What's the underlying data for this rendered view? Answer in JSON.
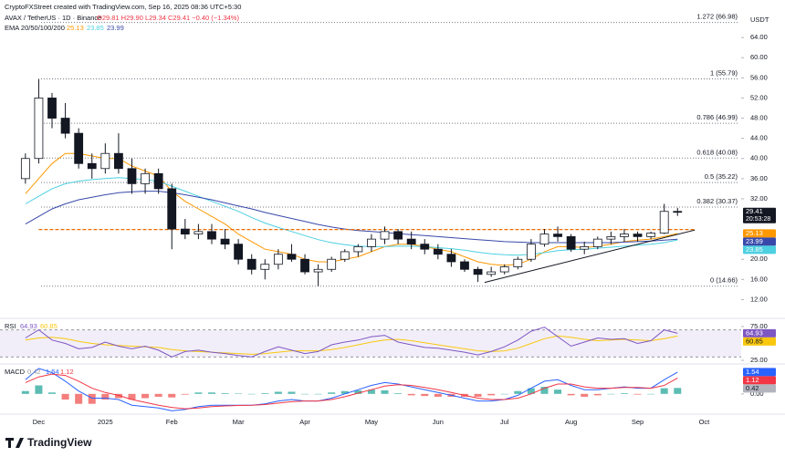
{
  "header": {
    "credit": "CryptoFXStreet created with TradingView.com, Sep 16, 2025 08:36 UTC+5:30",
    "symbol": "AVAX / TetherUS · 1D · Binance",
    "ohlc": "O29.81 H29.90 L29.34 C29.41 −0.40 (−1.34%)",
    "ema_label": "EMA 20/50/100/200",
    "currency": "USDT",
    "countdown": "20:53:28"
  },
  "footer": {
    "logo": "TradingView"
  },
  "chart_data": [
    {
      "type": "candlestick",
      "categories": [
        null,
        "Dec",
        null,
        null,
        null,
        null,
        "2025",
        null,
        null,
        null,
        null,
        "Feb",
        null,
        null,
        null,
        null,
        "Mar",
        null,
        null,
        null,
        null,
        "Apr",
        null,
        null,
        null,
        null,
        "May",
        null,
        null,
        null,
        null,
        "Jun",
        null,
        null,
        null,
        null,
        "Jul",
        null,
        null,
        null,
        null,
        "Aug",
        null,
        null,
        null,
        null,
        "Sep",
        null,
        null,
        null,
        null,
        "Oct"
      ],
      "open": [
        36,
        40,
        52,
        48,
        45,
        39,
        38,
        41,
        38,
        35,
        37,
        34,
        26,
        25,
        25.5,
        24,
        23,
        20,
        18,
        19,
        21,
        20,
        17.5,
        18,
        20,
        21.5,
        22.5,
        24,
        25.5,
        24,
        23,
        22,
        21,
        19.5,
        18,
        17,
        17.5,
        18.5,
        20,
        23,
        25,
        24.5,
        22,
        22.5,
        24,
        24.5,
        25,
        24.5,
        25.2,
        29.5,
        null,
        null
      ],
      "high": [
        41,
        55.79,
        53,
        51,
        46,
        41,
        43,
        45,
        40,
        38,
        38,
        35,
        28,
        27,
        27,
        26,
        24,
        21,
        20,
        22,
        23,
        21,
        19,
        20.5,
        22,
        23,
        25,
        26.5,
        26,
        25.5,
        24,
        23,
        22,
        20,
        18.5,
        18.5,
        19,
        20.5,
        24,
        26,
        26.5,
        25,
        23.5,
        24.5,
        25.5,
        26,
        25.5,
        25.5,
        31,
        30.2,
        null,
        null
      ],
      "low": [
        35,
        39,
        46,
        44,
        38,
        36,
        37,
        37,
        33,
        33,
        33,
        22,
        24,
        24,
        23,
        22,
        19,
        17,
        16,
        18,
        19.5,
        17,
        14.66,
        17.5,
        19.5,
        20.5,
        21.5,
        23,
        23,
        22,
        21,
        20,
        18.5,
        17.5,
        15.5,
        16.5,
        17,
        18,
        19.5,
        22.5,
        23.5,
        21.5,
        21,
        22,
        23,
        23.5,
        23.5,
        24,
        25,
        28.6,
        null,
        null
      ],
      "close": [
        40,
        52,
        48,
        45,
        39,
        38,
        41,
        38,
        35,
        37,
        34,
        26,
        25,
        25.5,
        24,
        23,
        20,
        18,
        19,
        21,
        20,
        17.5,
        18,
        20,
        21.5,
        22.5,
        24,
        25.5,
        24,
        23,
        22,
        21,
        19.5,
        18,
        17,
        17.5,
        18.5,
        20,
        23,
        25,
        24.5,
        22,
        22.5,
        24,
        24.5,
        25,
        24.5,
        25.2,
        29.5,
        29.41,
        null,
        null
      ],
      "up_color": "#ffffff",
      "down_color": "#131722",
      "series": [
        {
          "color": "#ff9800",
          "values": [
            33,
            36,
            39,
            41,
            41,
            40.5,
            40,
            40,
            38.5,
            37.5,
            36.5,
            33.5,
            31.5,
            30,
            28.5,
            27,
            25,
            23.5,
            22,
            21.5,
            21,
            20,
            19.5,
            19.5,
            20,
            20.5,
            21.5,
            22.5,
            23,
            23,
            22.5,
            22,
            21.5,
            20.5,
            19.5,
            19,
            18.8,
            19,
            20,
            21.5,
            22.5,
            22.5,
            22.3,
            22.6,
            23,
            23.5,
            23.8,
            24,
            24.5,
            25.13,
            null,
            null
          ]
        },
        {
          "color": "#4dd0e1",
          "values": [
            31,
            32.5,
            34,
            35,
            35.5,
            35.8,
            36,
            36.2,
            36,
            35.8,
            35.5,
            34.5,
            33.5,
            32.5,
            31.5,
            30.5,
            29.5,
            28.3,
            27.2,
            26.3,
            25.5,
            24.7,
            23.9,
            23.3,
            22.9,
            22.6,
            22.5,
            22.5,
            22.6,
            22.6,
            22.5,
            22.3,
            22.1,
            21.8,
            21.4,
            21.1,
            20.9,
            20.8,
            21,
            21.3,
            21.7,
            21.9,
            22,
            22.2,
            22.4,
            22.6,
            22.8,
            23,
            23.3,
            23.85,
            null,
            null
          ]
        },
        {
          "color": "#3949ab",
          "values": [
            27,
            28.5,
            30,
            31,
            31.8,
            32.3,
            32.8,
            33.2,
            33.4,
            33.5,
            33.5,
            33.2,
            32.8,
            32.3,
            31.8,
            31.2,
            30.6,
            30,
            29.3,
            28.7,
            28.1,
            27.5,
            26.9,
            26.4,
            26,
            25.7,
            25.5,
            25.3,
            25.1,
            24.9,
            24.7,
            24.5,
            24.3,
            24.1,
            23.9,
            23.7,
            23.5,
            23.4,
            23.3,
            23.3,
            23.3,
            23.3,
            23.3,
            23.3,
            23.3,
            23.4,
            23.5,
            23.6,
            23.8,
            23.99,
            null,
            null
          ]
        }
      ],
      "ylim": [
        9,
        70
      ],
      "yticks": [
        {
          "value": 64,
          "label": "64.00"
        },
        {
          "value": 60,
          "label": "60.00"
        },
        {
          "value": 56,
          "label": "56.00"
        },
        {
          "value": 52,
          "label": "52.00"
        },
        {
          "value": 48,
          "label": "48.00"
        },
        {
          "value": 44,
          "label": "44.00"
        },
        {
          "value": 40,
          "label": "40.00"
        },
        {
          "value": 36,
          "label": "36.00"
        },
        {
          "value": 32,
          "label": "32.00"
        },
        {
          "value": 20,
          "label": "20.00"
        },
        {
          "value": 16,
          "label": "16.00"
        },
        {
          "value": 12,
          "label": "12.00"
        }
      ],
      "fib_levels": [
        {
          "value": 66.98,
          "label": "1.272 (66.98)"
        },
        {
          "value": 55.79,
          "label": "1 (55.79)"
        },
        {
          "value": 46.99,
          "label": "0.786 (46.99)"
        },
        {
          "value": 40.08,
          "label": "0.618 (40.08)"
        },
        {
          "value": 35.22,
          "label": "0.5 (35.22)"
        },
        {
          "value": 30.37,
          "label": "0.382 (30.37)"
        },
        {
          "value": 14.66,
          "label": "0 (14.66)"
        }
      ],
      "resistance": {
        "value": 25.9,
        "color": "#ef6c00"
      },
      "trendline": {
        "values": [
          15.4,
          25.8
        ],
        "color": "#131722"
      }
    },
    {
      "type": "line",
      "title": "RSI",
      "series": [
        {
          "color": "#7e57c2",
          "values": [
            58,
            70,
            55,
            50,
            42,
            44,
            52,
            46,
            42,
            46,
            40,
            30,
            38,
            40,
            37,
            35,
            32,
            30,
            38,
            45,
            40,
            35,
            38,
            48,
            52,
            55,
            60,
            62,
            52,
            48,
            44,
            43,
            40,
            37,
            33,
            38,
            45,
            55,
            68,
            74,
            60,
            46,
            52,
            58,
            56,
            57,
            50,
            54,
            70,
            64.93,
            null,
            null
          ]
        },
        {
          "color": "#f9c80e",
          "values": [
            55,
            58,
            59,
            57,
            53,
            50,
            48,
            47,
            46,
            45,
            44,
            41,
            39,
            38,
            37,
            36,
            35,
            34,
            35,
            37,
            39,
            39,
            39,
            41,
            44,
            48,
            52,
            55,
            56,
            54,
            51,
            48,
            45,
            42,
            39,
            38,
            39,
            43,
            50,
            57,
            61,
            59,
            56,
            54,
            55,
            56,
            55,
            54,
            57,
            60.85,
            null,
            null
          ]
        }
      ],
      "band": [
        30,
        70
      ],
      "ylim": [
        21,
        83
      ],
      "yticks": [
        {
          "value": 75,
          "label": "75.00"
        },
        {
          "value": 25,
          "label": "25.00"
        }
      ]
    },
    {
      "type": "macd",
      "title": "MACD",
      "histogram": {
        "up_color": "#26a69a",
        "down_color": "#ef5350",
        "values": [
          0.2,
          0.6,
          0.1,
          -0.4,
          -0.7,
          -0.7,
          -0.4,
          -0.3,
          -0.4,
          -0.3,
          -0.2,
          -0.25,
          -0.05,
          0.1,
          0.1,
          0.05,
          0.02,
          0,
          0.05,
          0.15,
          0.15,
          0,
          0,
          0.1,
          0.2,
          0.25,
          0.3,
          0.25,
          0.05,
          -0.1,
          -0.15,
          -0.2,
          -0.2,
          -0.2,
          -0.2,
          -0.1,
          0,
          0.2,
          0.4,
          0.5,
          0.3,
          -0.1,
          -0.2,
          -0.1,
          0,
          0.05,
          -0.05,
          0,
          0.4,
          0.42,
          null,
          null
        ]
      },
      "series": [
        {
          "color": "#2962ff",
          "values": [
            1.0,
            1.8,
            1.5,
            0.9,
            0.2,
            -0.3,
            -0.3,
            -0.4,
            -0.8,
            -0.9,
            -1.0,
            -1.2,
            -1.1,
            -0.9,
            -0.8,
            -0.8,
            -0.8,
            -0.8,
            -0.7,
            -0.5,
            -0.4,
            -0.5,
            -0.5,
            -0.3,
            0.0,
            0.3,
            0.6,
            0.8,
            0.7,
            0.5,
            0.3,
            0.1,
            -0.1,
            -0.3,
            -0.5,
            -0.5,
            -0.4,
            -0.1,
            0.4,
            0.9,
            1.0,
            0.6,
            0.3,
            0.3,
            0.4,
            0.5,
            0.4,
            0.4,
            1.0,
            1.54,
            null,
            null
          ]
        },
        {
          "color": "#f23645",
          "values": [
            0.8,
            1.2,
            1.4,
            1.3,
            0.9,
            0.4,
            0.1,
            -0.1,
            -0.4,
            -0.6,
            -0.8,
            -0.95,
            -1.05,
            -1.0,
            -0.9,
            -0.85,
            -0.82,
            -0.8,
            -0.75,
            -0.65,
            -0.55,
            -0.5,
            -0.5,
            -0.4,
            -0.2,
            0.05,
            0.3,
            0.55,
            0.65,
            0.6,
            0.45,
            0.3,
            0.1,
            -0.1,
            -0.3,
            -0.4,
            -0.4,
            -0.3,
            0.0,
            0.4,
            0.7,
            0.7,
            0.5,
            0.4,
            0.4,
            0.45,
            0.45,
            0.4,
            0.6,
            1.12,
            null,
            null
          ]
        }
      ],
      "ylim": [
        -1.3,
        2.05
      ],
      "yticks": [
        {
          "value": 0,
          "label": "0.00"
        }
      ]
    }
  ]
}
